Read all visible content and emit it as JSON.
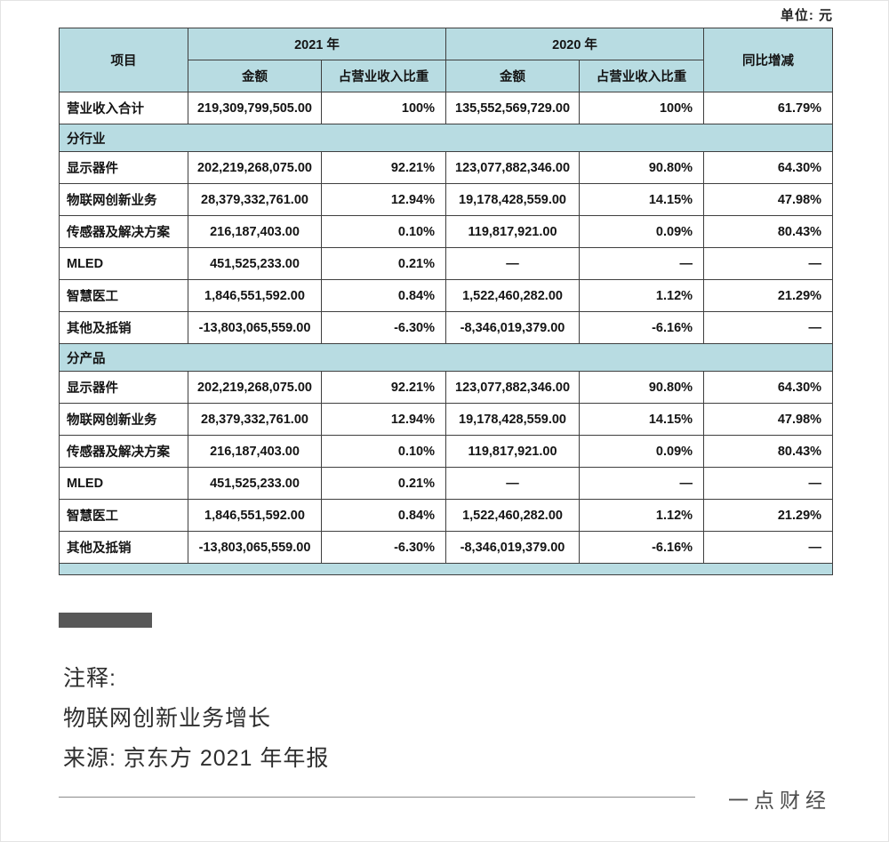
{
  "unit_label": "单位: 元",
  "table": {
    "header": {
      "item": "项目",
      "y2021": "2021 年",
      "y2020": "2020 年",
      "amount": "金额",
      "pct": "占营业收入比重",
      "yoy": "同比增减"
    },
    "rows": [
      {
        "type": "data",
        "label": "营业收入合计",
        "a2021": "219,309,799,505.00",
        "p2021": "100%",
        "a2020": "135,552,569,729.00",
        "p2020": "100%",
        "yoy": "61.79%"
      },
      {
        "type": "section",
        "label": "分行业"
      },
      {
        "type": "data",
        "label": "显示器件",
        "a2021": "202,219,268,075.00",
        "p2021": "92.21%",
        "a2020": "123,077,882,346.00",
        "p2020": "90.80%",
        "yoy": "64.30%"
      },
      {
        "type": "data",
        "label": "物联网创新业务",
        "a2021": "28,379,332,761.00",
        "p2021": "12.94%",
        "a2020": "19,178,428,559.00",
        "p2020": "14.15%",
        "yoy": "47.98%"
      },
      {
        "type": "data",
        "label": "传感器及解决方案",
        "a2021": "216,187,403.00",
        "p2021": "0.10%",
        "a2020": "119,817,921.00",
        "p2020": "0.09%",
        "yoy": "80.43%"
      },
      {
        "type": "data",
        "label": "MLED",
        "a2021": "451,525,233.00",
        "p2021": "0.21%",
        "a2020": "—",
        "p2020": "—",
        "yoy": "—"
      },
      {
        "type": "data",
        "label": "智慧医工",
        "a2021": "1,846,551,592.00",
        "p2021": "0.84%",
        "a2020": "1,522,460,282.00",
        "p2020": "1.12%",
        "yoy": "21.29%"
      },
      {
        "type": "data",
        "label": "其他及抵销",
        "a2021": "-13,803,065,559.00",
        "p2021": "-6.30%",
        "a2020": "-8,346,019,379.00",
        "p2020": "-6.16%",
        "yoy": "—"
      },
      {
        "type": "section",
        "label": "分产品"
      },
      {
        "type": "data",
        "label": "显示器件",
        "a2021": "202,219,268,075.00",
        "p2021": "92.21%",
        "a2020": "123,077,882,346.00",
        "p2020": "90.80%",
        "yoy": "64.30%"
      },
      {
        "type": "data",
        "label": "物联网创新业务",
        "a2021": "28,379,332,761.00",
        "p2021": "12.94%",
        "a2020": "19,178,428,559.00",
        "p2020": "14.15%",
        "yoy": "47.98%"
      },
      {
        "type": "data",
        "label": "传感器及解决方案",
        "a2021": "216,187,403.00",
        "p2021": "0.10%",
        "a2020": "119,817,921.00",
        "p2020": "0.09%",
        "yoy": "80.43%"
      },
      {
        "type": "data",
        "label": "MLED",
        "a2021": "451,525,233.00",
        "p2021": "0.21%",
        "a2020": "—",
        "p2020": "—",
        "yoy": "—"
      },
      {
        "type": "data",
        "label": "智慧医工",
        "a2021": "1,846,551,592.00",
        "p2021": "0.84%",
        "a2020": "1,522,460,282.00",
        "p2020": "1.12%",
        "yoy": "21.29%"
      },
      {
        "type": "data",
        "label": "其他及抵销",
        "a2021": "-13,803,065,559.00",
        "p2021": "-6.30%",
        "a2020": "-8,346,019,379.00",
        "p2020": "-6.16%",
        "yoy": "—"
      },
      {
        "type": "spacer"
      }
    ]
  },
  "notes": {
    "label": "注释:",
    "line1": "物联网创新业务增长",
    "source": "来源: 京东方 2021 年年报"
  },
  "footer": {
    "brand": "一点财经"
  },
  "colors": {
    "header_teal": "#b8dce2",
    "border": "#3f3f3f",
    "divider_bar": "#585858"
  }
}
